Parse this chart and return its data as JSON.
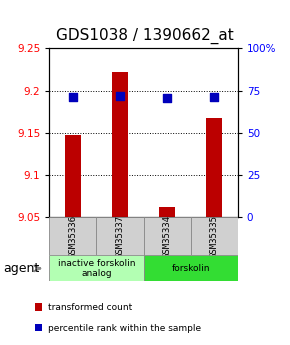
{
  "title": "GDS1038 / 1390662_at",
  "samples": [
    "GSM35336",
    "GSM35337",
    "GSM35334",
    "GSM35335"
  ],
  "red_values": [
    9.148,
    9.222,
    9.062,
    9.168
  ],
  "blue_values": [
    9.192,
    9.193,
    9.191,
    9.192
  ],
  "ylim_left": [
    9.05,
    9.25
  ],
  "yticks_left": [
    9.05,
    9.1,
    9.15,
    9.2,
    9.25
  ],
  "yticks_right": [
    0,
    25,
    50,
    75,
    100
  ],
  "group_configs": [
    {
      "samples": [
        0,
        1
      ],
      "label": "inactive forskolin\nanalog",
      "color": "#b3ffb3"
    },
    {
      "samples": [
        2,
        3
      ],
      "label": "forskolin",
      "color": "#33dd33"
    }
  ],
  "bar_color": "#bb0000",
  "dot_color": "#0000bb",
  "bar_width": 0.35,
  "dot_size": 30,
  "grid_color": "black",
  "title_fontsize": 11,
  "tick_fontsize": 7.5,
  "label_fontsize": 7,
  "agent_fontsize": 9
}
